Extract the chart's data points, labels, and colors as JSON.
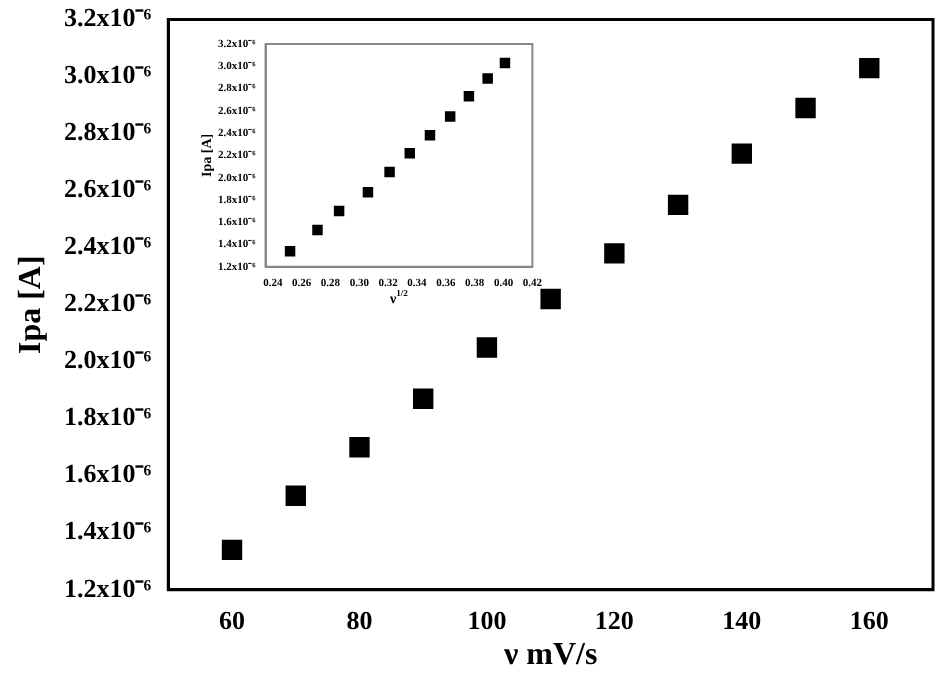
{
  "chart_data": [
    {
      "type": "scatter",
      "xlabel": "ν mV/s",
      "ylabel": "Ipa [A]",
      "marker": "square",
      "x": [
        60,
        70,
        80,
        90,
        100,
        110,
        120,
        130,
        140,
        150,
        160
      ],
      "series": [
        {
          "color": "#000000",
          "values": [
            1.34e-06,
            1.53e-06,
            1.7e-06,
            1.87e-06,
            2.05e-06,
            2.22e-06,
            2.38e-06,
            2.55e-06,
            2.73e-06,
            2.89e-06,
            3.03e-06
          ]
        }
      ],
      "xlim": [
        50,
        170
      ],
      "xticks": [
        60,
        80,
        100,
        120,
        140,
        160
      ],
      "ylim": [
        1.2e-06,
        3.2e-06
      ],
      "yticks": [
        {
          "value": 1.2e-06,
          "label": "1.2x10⁻⁶"
        },
        {
          "value": 1.4e-06,
          "label": "1.4x10⁻⁶"
        },
        {
          "value": 1.6e-06,
          "label": "1.6x10⁻⁶"
        },
        {
          "value": 1.8e-06,
          "label": "1.8x10⁻⁶"
        },
        {
          "value": 2e-06,
          "label": "2.0x10⁻⁶"
        },
        {
          "value": 2.2e-06,
          "label": "2.2x10⁻⁶"
        },
        {
          "value": 2.4e-06,
          "label": "2.4x10⁻⁶"
        },
        {
          "value": 2.6e-06,
          "label": "2.6x10⁻⁶"
        },
        {
          "value": 2.8e-06,
          "label": "2.8x10⁻⁶"
        },
        {
          "value": 3e-06,
          "label": "3.0x10⁻⁶"
        },
        {
          "value": 3.2e-06,
          "label": "3.2x10⁻⁶"
        }
      ]
    },
    {
      "type": "scatter",
      "xlabel": "ν$^{1/2}$",
      "ylabel": "Ipa [A]",
      "marker": "square",
      "x": [
        0.252,
        0.271,
        0.286,
        0.306,
        0.321,
        0.335,
        0.349,
        0.363,
        0.376,
        0.389,
        0.401
      ],
      "series": [
        {
          "color": "#000000",
          "values": [
            1.34e-06,
            1.53e-06,
            1.7e-06,
            1.87e-06,
            2.05e-06,
            2.22e-06,
            2.38e-06,
            2.55e-06,
            2.73e-06,
            2.89e-06,
            3.03e-06
          ]
        }
      ],
      "xlim": [
        0.235,
        0.42
      ],
      "xticks": [
        {
          "value": 0.24,
          "label": "0.24"
        },
        {
          "value": 0.26,
          "label": "0.26"
        },
        {
          "value": 0.28,
          "label": "0.28"
        },
        {
          "value": 0.3,
          "label": "0.30"
        },
        {
          "value": 0.32,
          "label": "0.32"
        },
        {
          "value": 0.34,
          "label": "0.34"
        },
        {
          "value": 0.36,
          "label": "0.36"
        },
        {
          "value": 0.38,
          "label": "0.38"
        },
        {
          "value": 0.4,
          "label": "0.40"
        },
        {
          "value": 0.42,
          "label": "0.42"
        }
      ],
      "ylim": [
        1.2e-06,
        3.2e-06
      ],
      "yticks": [
        {
          "value": 1.2e-06,
          "label": "1.2x10⁻⁶"
        },
        {
          "value": 1.4e-06,
          "label": "1.4x10⁻⁶"
        },
        {
          "value": 1.6e-06,
          "label": "1.6x10⁻⁶"
        },
        {
          "value": 1.8e-06,
          "label": "1.8x10⁻⁶"
        },
        {
          "value": 2e-06,
          "label": "2.0x10⁻⁶"
        },
        {
          "value": 2.2e-06,
          "label": "2.2x10⁻⁶"
        },
        {
          "value": 2.4e-06,
          "label": "2.4x10⁻⁶"
        },
        {
          "value": 2.6e-06,
          "label": "2.6x10⁻⁶"
        },
        {
          "value": 2.8e-06,
          "label": "2.8x10⁻⁶"
        },
        {
          "value": 3e-06,
          "label": "3.0x10⁻⁶"
        },
        {
          "value": 3.2e-06,
          "label": "3.2x10⁻⁶"
        }
      ]
    }
  ]
}
